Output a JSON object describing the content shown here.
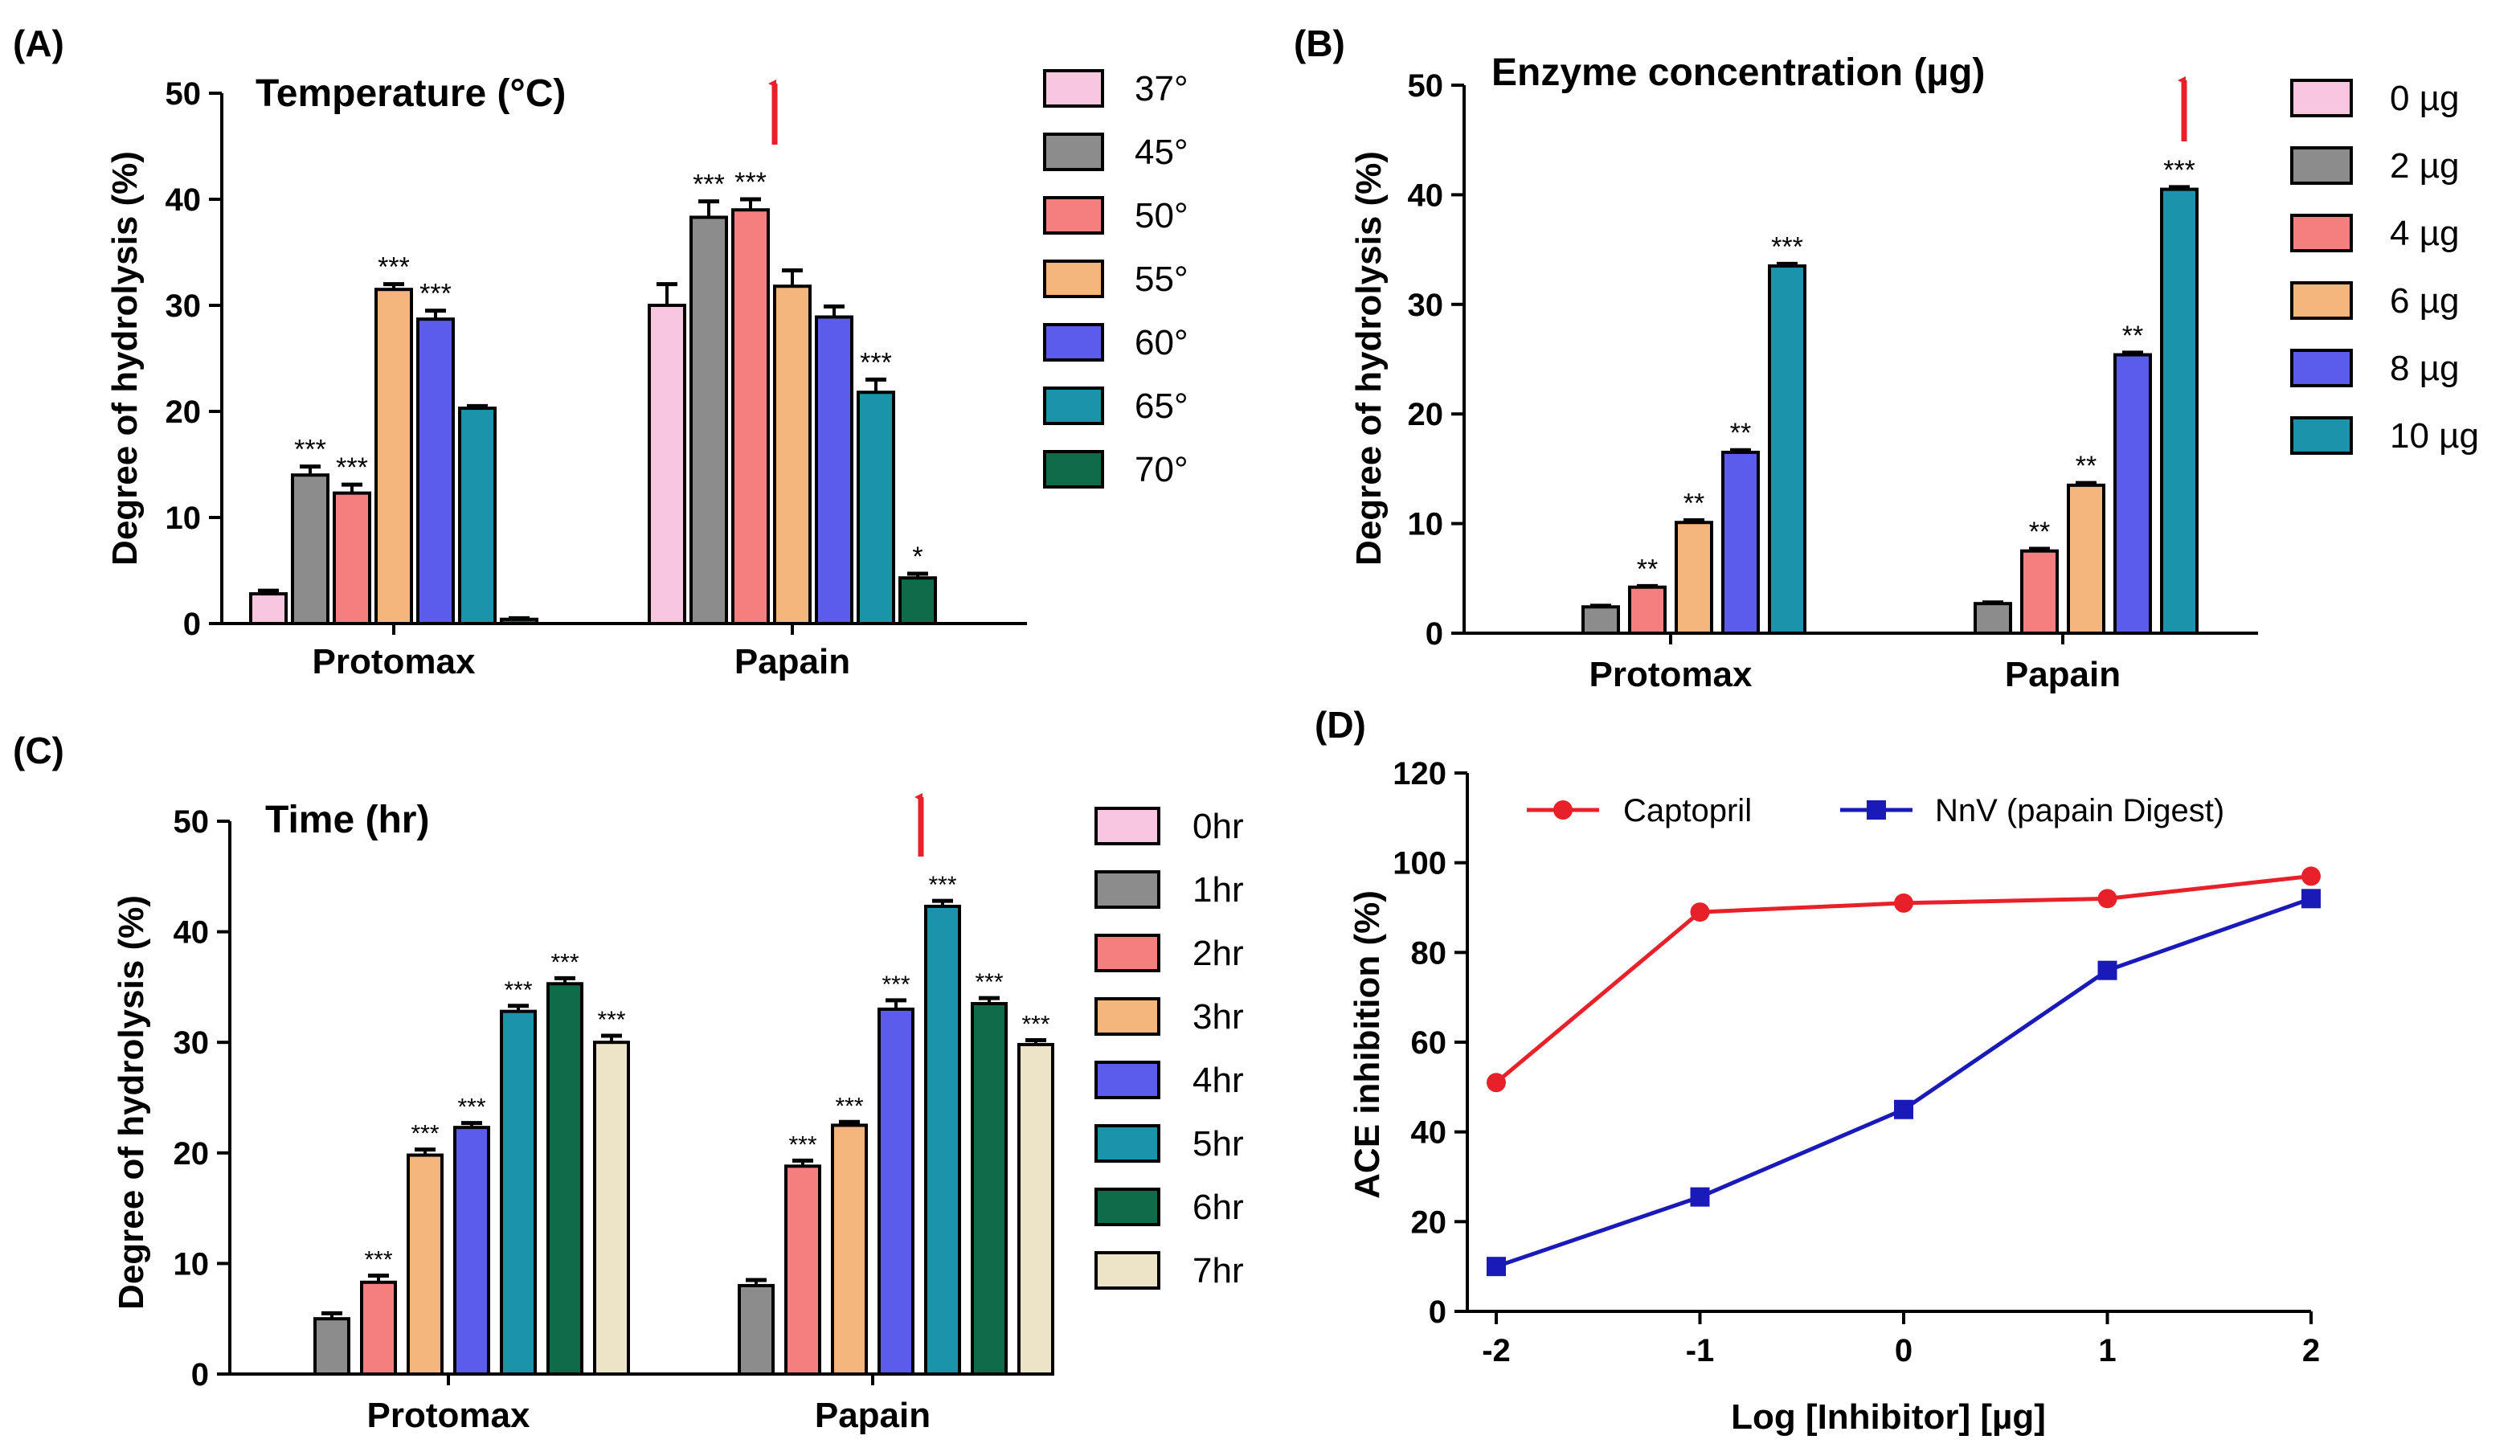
{
  "chart_data": [
    {
      "id": "A",
      "panel_letter": "(A)",
      "type": "bar",
      "title": "Temperature (°C)",
      "xlabel": "",
      "ylabel": "Degree of hydrolysis (%)",
      "ylim": [
        0,
        50
      ],
      "yticks": [
        0,
        10,
        20,
        30,
        40,
        50
      ],
      "categories": [
        "Protomax",
        "Papain"
      ],
      "series": [
        {
          "name": "37°",
          "color": "#f9c6df",
          "values": [
            2.8,
            30.0
          ],
          "errors": [
            0.3,
            2.0
          ],
          "sig": [
            "",
            ""
          ]
        },
        {
          "name": "45°",
          "color": "#8c8c8c",
          "values": [
            14.0,
            38.3
          ],
          "errors": [
            0.8,
            1.5
          ],
          "sig": [
            "***",
            "***"
          ]
        },
        {
          "name": "50°",
          "color": "#f47f7f",
          "values": [
            12.3,
            39.0
          ],
          "errors": [
            0.8,
            1.0
          ],
          "sig": [
            "***",
            "***"
          ]
        },
        {
          "name": "55°",
          "color": "#f5b67d",
          "values": [
            31.5,
            31.8
          ],
          "errors": [
            0.5,
            1.5
          ],
          "sig": [
            "***",
            ""
          ]
        },
        {
          "name": "60°",
          "color": "#5b5cec",
          "values": [
            28.7,
            28.9
          ],
          "errors": [
            0.8,
            1.0
          ],
          "sig": [
            "***",
            ""
          ]
        },
        {
          "name": "65°",
          "color": "#1b93a9",
          "values": [
            20.3,
            21.8
          ],
          "errors": [
            0.2,
            1.2
          ],
          "sig": [
            "",
            "***"
          ]
        },
        {
          "name": "70°",
          "color": "#0f6b49",
          "values": [
            0.4,
            4.3
          ],
          "errors": [
            0.1,
            0.4
          ],
          "sig": [
            "",
            "*"
          ]
        }
      ],
      "arrow_on": "Papain 50°"
    },
    {
      "id": "B",
      "panel_letter": "(B)",
      "type": "bar",
      "title": "Enzyme concentration (µg)",
      "xlabel": "",
      "ylabel": "Degree of hydrolysis (%)",
      "ylim": [
        0,
        50
      ],
      "yticks": [
        0,
        10,
        20,
        30,
        40,
        50
      ],
      "categories": [
        "Protomax",
        "Papain"
      ],
      "series": [
        {
          "name": "0 µg",
          "color": "#f9c6df",
          "values": [
            0,
            0
          ],
          "errors": [
            0,
            0
          ],
          "sig": [
            "",
            ""
          ]
        },
        {
          "name": "2 µg",
          "color": "#8c8c8c",
          "values": [
            2.4,
            2.7
          ],
          "errors": [
            0.1,
            0.1
          ],
          "sig": [
            "",
            ""
          ]
        },
        {
          "name": "4 µg",
          "color": "#f47f7f",
          "values": [
            4.2,
            7.5
          ],
          "errors": [
            0.1,
            0.2
          ],
          "sig": [
            "**",
            "**"
          ]
        },
        {
          "name": "6 µg",
          "color": "#f5b67d",
          "values": [
            10.1,
            13.5
          ],
          "errors": [
            0.2,
            0.2
          ],
          "sig": [
            "**",
            "**"
          ]
        },
        {
          "name": "8 µg",
          "color": "#5b5cec",
          "values": [
            16.5,
            25.4
          ],
          "errors": [
            0.2,
            0.2
          ],
          "sig": [
            "**",
            "**"
          ]
        },
        {
          "name": "10 µg",
          "color": "#1b93a9",
          "values": [
            33.5,
            40.5
          ],
          "errors": [
            0.2,
            0.2
          ],
          "sig": [
            "***",
            "***"
          ]
        }
      ],
      "arrow_on": "Papain 10 µg"
    },
    {
      "id": "C",
      "panel_letter": "(C)",
      "type": "bar",
      "title": "Time (hr)",
      "xlabel": "",
      "ylabel": "Degree of hydrolysis (%)",
      "ylim": [
        0,
        50
      ],
      "yticks": [
        0,
        10,
        20,
        30,
        40,
        50
      ],
      "categories": [
        "Protomax",
        "Papain"
      ],
      "series": [
        {
          "name": "0hr",
          "color": "#f9c6df",
          "values": [
            0,
            0
          ],
          "errors": [
            0,
            0
          ],
          "sig": [
            "",
            ""
          ]
        },
        {
          "name": "1hr",
          "color": "#8c8c8c",
          "values": [
            5.0,
            8.0
          ],
          "errors": [
            0.5,
            0.5
          ],
          "sig": [
            "",
            ""
          ]
        },
        {
          "name": "2hr",
          "color": "#f47f7f",
          "values": [
            8.3,
            18.8
          ],
          "errors": [
            0.6,
            0.5
          ],
          "sig": [
            "***",
            "***"
          ]
        },
        {
          "name": "3hr",
          "color": "#f5b67d",
          "values": [
            19.8,
            22.5
          ],
          "errors": [
            0.5,
            0.3
          ],
          "sig": [
            "***",
            "***"
          ]
        },
        {
          "name": "4hr",
          "color": "#5b5cec",
          "values": [
            22.3,
            33.0
          ],
          "errors": [
            0.4,
            0.8
          ],
          "sig": [
            "***",
            "***"
          ]
        },
        {
          "name": "5hr",
          "color": "#1b93a9",
          "values": [
            32.8,
            42.3
          ],
          "errors": [
            0.5,
            0.5
          ],
          "sig": [
            "***",
            "***"
          ]
        },
        {
          "name": "6hr",
          "color": "#0f6b49",
          "values": [
            35.3,
            33.5
          ],
          "errors": [
            0.5,
            0.5
          ],
          "sig": [
            "***",
            "***"
          ]
        },
        {
          "name": "7hr",
          "color": "#ede3c6",
          "values": [
            30.0,
            29.8
          ],
          "errors": [
            0.6,
            0.4
          ],
          "sig": [
            "***",
            "***"
          ]
        }
      ],
      "arrow_on": "Papain 5hr"
    },
    {
      "id": "D",
      "panel_letter": "(D)",
      "type": "line",
      "title": "",
      "xlabel": "Log [Inhibitor] [µg]",
      "ylabel": "ACE inhibition (%)",
      "xlim": [
        -2,
        2
      ],
      "xticks": [
        -2,
        -1,
        0,
        1,
        2
      ],
      "ylim": [
        0,
        120
      ],
      "yticks": [
        0,
        20,
        40,
        60,
        80,
        100,
        120
      ],
      "legend_position": "top",
      "series": [
        {
          "name": "Captopril",
          "color": "#e8202a",
          "marker": "circle",
          "x": [
            -2,
            -1,
            0,
            1,
            2
          ],
          "y": [
            51,
            89,
            91,
            92,
            97
          ]
        },
        {
          "name": "NnV (papain Digest)",
          "color": "#1a1ab8",
          "marker": "square",
          "x": [
            -2,
            -1,
            0,
            1,
            2
          ],
          "y": [
            10,
            25.5,
            45,
            76,
            92
          ]
        }
      ]
    }
  ]
}
